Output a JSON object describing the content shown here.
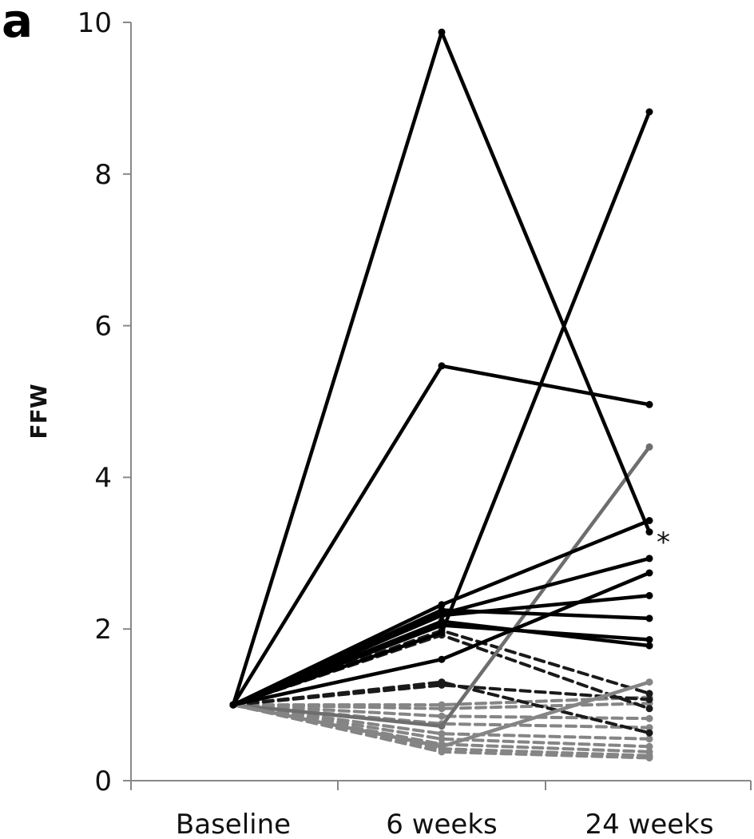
{
  "chart_data": {
    "type": "line",
    "panel_label": "a",
    "title": "",
    "xlabel": "",
    "ylabel": "FFW",
    "categories": [
      "Baseline",
      "6 weeks",
      "24 weeks"
    ],
    "ylim": [
      0,
      10
    ],
    "yticks": [
      "0",
      "2",
      "4",
      "6",
      "8",
      "10"
    ],
    "grid": false,
    "legend": "none",
    "annotation": "*",
    "colors": {
      "solid_black": "#000000",
      "dark_dashed": "#1a1a1a",
      "gray": "#6e6e6e",
      "light_gray": "#858585"
    },
    "series": [
      {
        "values": [
          1,
          9.87,
          3.28
        ],
        "style": "solid",
        "color": "#000000"
      },
      {
        "values": [
          1,
          5.47,
          4.96
        ],
        "style": "solid",
        "color": "#000000"
      },
      {
        "values": [
          1,
          1.95,
          8.82
        ],
        "style": "solid",
        "color": "#000000"
      },
      {
        "values": [
          1,
          2.32,
          3.43
        ],
        "style": "solid",
        "color": "#000000"
      },
      {
        "values": [
          1,
          2.2,
          2.93
        ],
        "style": "solid",
        "color": "#000000"
      },
      {
        "values": [
          1,
          1.6,
          2.74
        ],
        "style": "solid",
        "color": "#000000"
      },
      {
        "values": [
          1,
          2.18,
          2.44
        ],
        "style": "solid",
        "color": "#000000"
      },
      {
        "values": [
          1,
          2.25,
          2.14
        ],
        "style": "solid",
        "color": "#000000"
      },
      {
        "values": [
          1,
          2.05,
          1.86
        ],
        "style": "solid",
        "color": "#000000"
      },
      {
        "values": [
          1,
          2.1,
          1.78
        ],
        "style": "solid",
        "color": "#000000"
      },
      {
        "values": [
          1,
          0.72,
          4.4
        ],
        "style": "solid",
        "color": "#6e6e6e"
      },
      {
        "values": [
          1,
          0.45,
          1.3
        ],
        "style": "solid",
        "color": "#858585"
      },
      {
        "values": [
          1,
          1.98,
          1.15
        ],
        "style": "dashed",
        "color": "#1a1a1a"
      },
      {
        "values": [
          1,
          1.92,
          0.95
        ],
        "style": "dashed",
        "color": "#1a1a1a"
      },
      {
        "values": [
          1,
          1.3,
          0.63
        ],
        "style": "dashed",
        "color": "#1a1a1a"
      },
      {
        "values": [
          1,
          1.26,
          1.07
        ],
        "style": "dashed",
        "color": "#1a1a1a"
      },
      {
        "values": [
          1,
          1.0,
          1.1
        ],
        "style": "dashed",
        "color": "#858585"
      },
      {
        "values": [
          1,
          0.95,
          1.02
        ],
        "style": "dashed",
        "color": "#858585"
      },
      {
        "values": [
          1,
          0.85,
          0.82
        ],
        "style": "dashed",
        "color": "#858585"
      },
      {
        "values": [
          1,
          0.75,
          0.7
        ],
        "style": "dashed",
        "color": "#858585"
      },
      {
        "values": [
          1,
          0.62,
          0.55
        ],
        "style": "dashed",
        "color": "#858585"
      },
      {
        "values": [
          1,
          0.55,
          0.45
        ],
        "style": "dashed",
        "color": "#858585"
      },
      {
        "values": [
          1,
          0.48,
          0.38
        ],
        "style": "dashed",
        "color": "#858585"
      },
      {
        "values": [
          1,
          0.42,
          0.33
        ],
        "style": "dashed",
        "color": "#858585"
      },
      {
        "values": [
          1,
          0.38,
          0.3
        ],
        "style": "dashed",
        "color": "#858585"
      }
    ]
  }
}
